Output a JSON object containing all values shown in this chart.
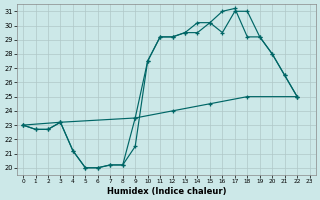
{
  "xlabel": "Humidex (Indice chaleur)",
  "background_color": "#cce8e8",
  "grid_color": "#b0c8c8",
  "line_color": "#006666",
  "xlim": [
    -0.5,
    23.5
  ],
  "ylim": [
    19.5,
    31.5
  ],
  "yticks": [
    20,
    21,
    22,
    23,
    24,
    25,
    26,
    27,
    28,
    29,
    30,
    31
  ],
  "xticks": [
    0,
    1,
    2,
    3,
    4,
    5,
    6,
    7,
    8,
    9,
    10,
    11,
    12,
    13,
    14,
    15,
    16,
    17,
    18,
    19,
    20,
    21,
    22,
    23
  ],
  "line1_x": [
    0,
    1,
    2,
    3,
    4,
    5,
    6,
    7,
    8,
    9,
    10,
    11,
    12,
    13,
    14,
    15,
    16,
    17,
    18,
    19,
    20,
    21,
    22
  ],
  "line1_y": [
    23,
    22.7,
    22.7,
    23.2,
    21.2,
    20.0,
    20.0,
    20.2,
    20.2,
    21.5,
    27.5,
    29.2,
    29.2,
    29.5,
    29.5,
    30.2,
    29.5,
    31.0,
    31.0,
    29.2,
    28.0,
    26.5,
    25.0
  ],
  "line2_x": [
    0,
    1,
    2,
    3,
    4,
    5,
    6,
    7,
    8,
    9,
    10,
    11,
    12,
    13,
    14,
    15,
    16,
    17,
    18,
    19,
    20,
    21,
    22
  ],
  "line2_y": [
    23,
    22.7,
    22.7,
    23.2,
    21.2,
    20.0,
    20.0,
    20.2,
    20.2,
    23.5,
    27.5,
    29.2,
    29.2,
    29.5,
    30.2,
    30.2,
    31.0,
    31.2,
    29.2,
    29.2,
    28.0,
    26.5,
    25.0
  ],
  "line3_x": [
    0,
    3,
    9,
    12,
    15,
    18,
    22
  ],
  "line3_y": [
    23,
    23.2,
    23.5,
    24.0,
    24.5,
    25.0,
    25.0
  ]
}
